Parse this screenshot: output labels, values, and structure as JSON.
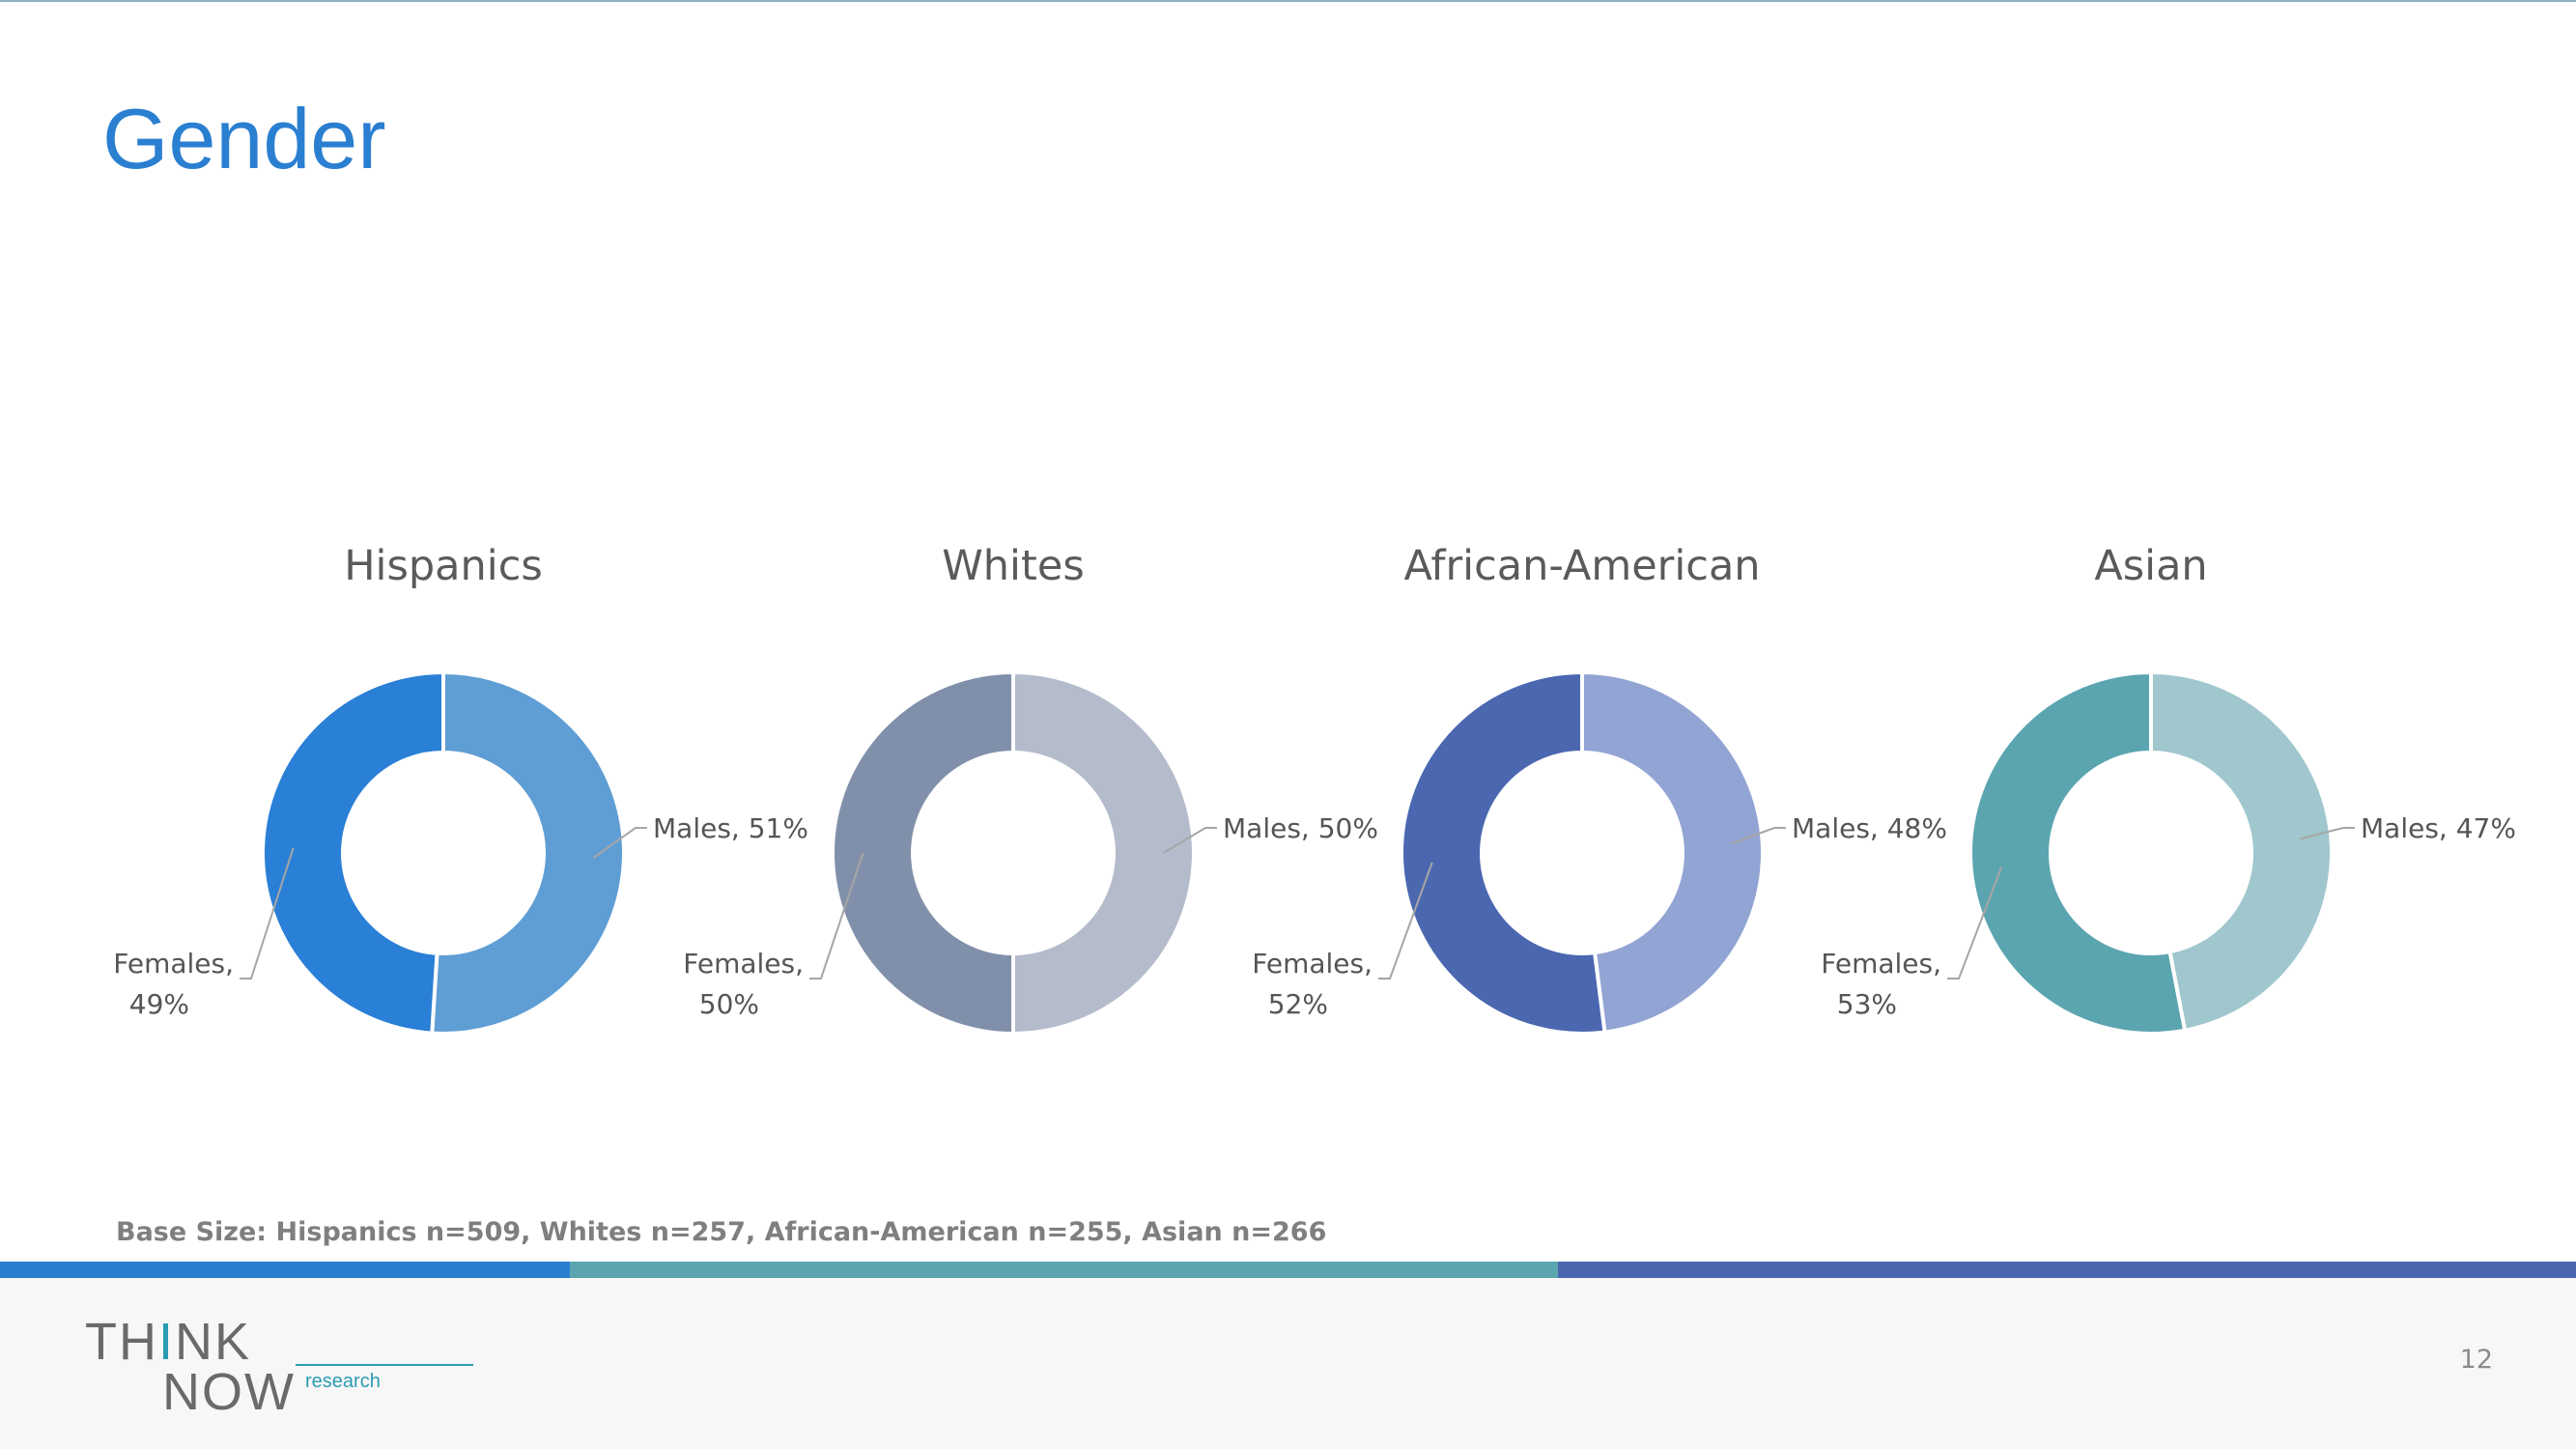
{
  "slide": {
    "title": "Gender",
    "base_size_prefix": "Base Size: ",
    "base_size_text": "Hispanics n=509, Whites n=257, African-American n=255, Asian n=266",
    "page_number": "12"
  },
  "logo": {
    "think_pre": "TH",
    "think_i": "I",
    "think_post": "NK",
    "now": "NOW",
    "research": "research"
  },
  "colors": {
    "title": "#2a7fd1",
    "band_1": "#2a7fd1",
    "band_2": "#5ba5b0",
    "band_3": "#4a67b0"
  },
  "chart_data": [
    {
      "type": "pie",
      "donut": true,
      "title": "Hispanics",
      "slices": [
        {
          "name": "Males",
          "value": 51,
          "label_line1": "Males, 51%",
          "label_line2": "",
          "color": "#5f9ed4"
        },
        {
          "name": "Females",
          "value": 49,
          "label_line1": "Females,",
          "label_line2": "49%",
          "color": "#2a7fd6"
        }
      ]
    },
    {
      "type": "pie",
      "donut": true,
      "title": "Whites",
      "slices": [
        {
          "name": "Males",
          "value": 50,
          "label_line1": "Males, 50%",
          "label_line2": "",
          "color": "#b4bccb"
        },
        {
          "name": "Females",
          "value": 50,
          "label_line1": "Females,",
          "label_line2": "50%",
          "color": "#8190aa"
        }
      ]
    },
    {
      "type": "pie",
      "donut": true,
      "title": "African-American",
      "slices": [
        {
          "name": "Males",
          "value": 48,
          "label_line1": "Males, 48%",
          "label_line2": "",
          "color": "#92a4d3"
        },
        {
          "name": "Females",
          "value": 52,
          "label_line1": "Females,",
          "label_line2": "52%",
          "color": "#4a67b0"
        }
      ]
    },
    {
      "type": "pie",
      "donut": true,
      "title": "Asian",
      "slices": [
        {
          "name": "Males",
          "value": 47,
          "label_line1": "Males, 47%",
          "label_line2": "",
          "color": "#9fc7cd"
        },
        {
          "name": "Females",
          "value": 53,
          "label_line1": "Females,",
          "label_line2": "53%",
          "color": "#5ba5b0"
        }
      ]
    }
  ]
}
